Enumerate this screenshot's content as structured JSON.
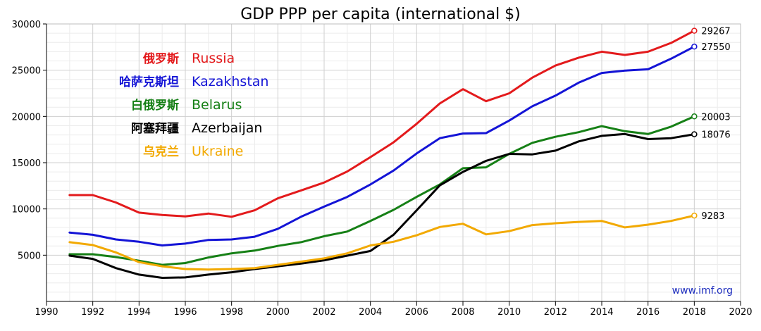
{
  "chart_data": {
    "type": "line",
    "title": "GDP PPP per capita (international $)",
    "source": "www.imf.org",
    "xlim": [
      1990,
      2020
    ],
    "ylim": [
      0,
      30000
    ],
    "x_ticks": [
      1990,
      1992,
      1994,
      1996,
      1998,
      2000,
      2002,
      2004,
      2006,
      2008,
      2010,
      2012,
      2014,
      2016,
      2018,
      2020
    ],
    "y_ticks": [
      5000,
      10000,
      15000,
      20000,
      25000,
      30000
    ],
    "grid": true,
    "legend_position": "top-left",
    "x": [
      1991,
      1992,
      1993,
      1994,
      1995,
      1996,
      1997,
      1998,
      1999,
      2000,
      2001,
      2002,
      2003,
      2004,
      2005,
      2006,
      2007,
      2008,
      2009,
      2010,
      2011,
      2012,
      2013,
      2014,
      2015,
      2016,
      2017,
      2018
    ],
    "series": [
      {
        "name": "Russia",
        "name_cn": "俄罗斯",
        "color": "#e31a1c",
        "values": [
          11500,
          11500,
          10700,
          9600,
          9350,
          9200,
          9500,
          9150,
          9850,
          11150,
          12000,
          12850,
          14050,
          15600,
          17200,
          19200,
          21400,
          22950,
          21650,
          22500,
          24200,
          25500,
          26350,
          27000,
          26650,
          27000,
          27950,
          29267
        ],
        "end_label": "29267"
      },
      {
        "name": "Kazakhstan",
        "name_cn": "哈萨克斯坦",
        "color": "#1414d6",
        "values": [
          7450,
          7200,
          6700,
          6450,
          6050,
          6250,
          6650,
          6700,
          7000,
          7850,
          9150,
          10250,
          11300,
          12650,
          14150,
          16000,
          17650,
          18150,
          18200,
          19550,
          21100,
          22250,
          23650,
          24700,
          24950,
          25100,
          26250,
          27550
        ],
        "end_label": "27550"
      },
      {
        "name": "Belarus",
        "name_cn": "白俄罗斯",
        "color": "#168016",
        "values": [
          5100,
          5100,
          4800,
          4400,
          3950,
          4150,
          4750,
          5200,
          5500,
          6000,
          6400,
          7050,
          7550,
          8700,
          9900,
          11300,
          12650,
          14400,
          14500,
          15950,
          17150,
          17800,
          18300,
          18950,
          18400,
          18100,
          18900,
          20003
        ],
        "end_label": "20003"
      },
      {
        "name": "Azerbaijan",
        "name_cn": "阿塞拜疆",
        "color": "#000000",
        "values": [
          4950,
          4600,
          3600,
          2900,
          2550,
          2600,
          2900,
          3150,
          3500,
          3800,
          4100,
          4450,
          4950,
          5450,
          7200,
          9850,
          12550,
          14000,
          15200,
          15950,
          15900,
          16300,
          17300,
          17900,
          18100,
          17550,
          17650,
          18076
        ],
        "end_label": "18076"
      },
      {
        "name": "Ukraine",
        "name_cn": "乌克兰",
        "color": "#f2a900",
        "values": [
          6400,
          6100,
          5300,
          4250,
          3800,
          3500,
          3450,
          3500,
          3600,
          3950,
          4300,
          4650,
          5200,
          6050,
          6450,
          7150,
          8050,
          8400,
          7250,
          7600,
          8250,
          8450,
          8600,
          8700,
          8000,
          8300,
          8700,
          9283
        ],
        "end_label": "9283"
      }
    ]
  }
}
